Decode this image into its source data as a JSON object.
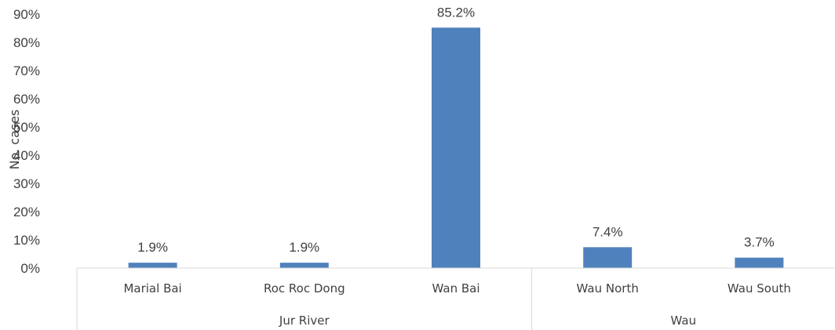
{
  "chart_data": {
    "type": "bar",
    "title": "",
    "xlabel": "",
    "ylabel": "No. cases",
    "ylim": [
      0,
      90
    ],
    "yticks": [
      "0%",
      "10%",
      "20%",
      "30%",
      "40%",
      "50%",
      "60%",
      "70%",
      "80%",
      "90%"
    ],
    "grid": false,
    "legend": "none",
    "categories": [
      "Marial Bai",
      "Roc Roc Dong",
      "Wan Bai",
      "Wau North",
      "Wau South"
    ],
    "groups": [
      {
        "name": "Jur River",
        "categories": [
          "Marial Bai",
          "Roc Roc Dong",
          "Wan Bai"
        ]
      },
      {
        "name": "Wau",
        "categories": [
          "Wau North",
          "Wau South"
        ]
      }
    ],
    "values": [
      1.9,
      1.9,
      85.2,
      7.4,
      3.7
    ],
    "data_labels": [
      "1.9%",
      "1.9%",
      "85.2%",
      "7.4%",
      "3.7%"
    ],
    "bar_color": "#4F81BD"
  }
}
